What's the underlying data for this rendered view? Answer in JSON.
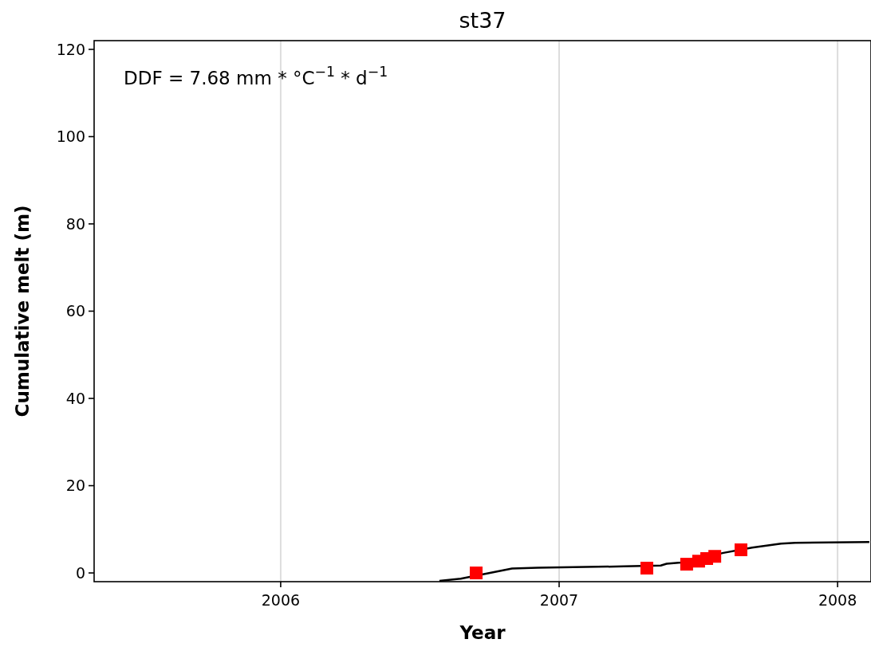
{
  "chart_data": {
    "type": "line",
    "title": "st37",
    "xlabel": "Year",
    "ylabel": "Cumulative melt (m)",
    "annotations": [
      "DDF = 7.68 mm * °C$^{−1}$ * d$^{−1}$"
    ],
    "xlim": [
      2005.33,
      2008.12
    ],
    "xticks": [
      2006,
      2007,
      2008
    ],
    "ylim": [
      -2,
      122
    ],
    "yticks": [
      0,
      20,
      40,
      60,
      80,
      100,
      120
    ],
    "grid": "x",
    "series": [
      {
        "color": "#000000",
        "marker": "none",
        "x": [
          2006.57,
          2006.647,
          2006.831,
          2006.923,
          2007.232,
          2007.365,
          2007.386,
          2007.437,
          2007.59,
          2007.693,
          2007.797,
          2007.848,
          2008.114
        ],
        "values": [
          -1.8,
          -1.3,
          1.0,
          1.2,
          1.5,
          1.7,
          2.1,
          2.4,
          4.6,
          5.8,
          6.7,
          6.9,
          7.1
        ]
      },
      {
        "type": "scatter",
        "color": "#ff0000",
        "marker": "square",
        "x": [
          2006.702,
          2007.315,
          2007.458,
          2007.501,
          2007.53,
          2007.559,
          2007.653
        ],
        "values": [
          0.0,
          1.1,
          2.0,
          2.7,
          3.3,
          3.8,
          5.3
        ]
      }
    ]
  }
}
